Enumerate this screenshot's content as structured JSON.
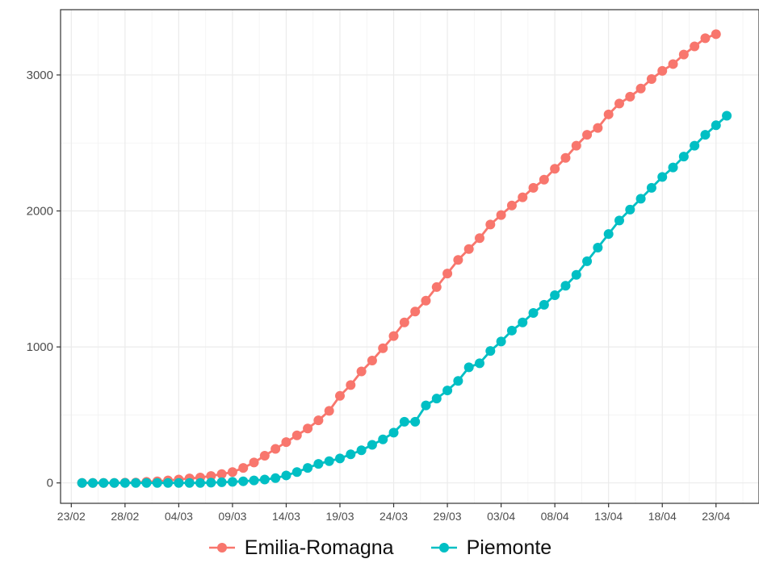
{
  "chart_data": {
    "type": "line",
    "title": "",
    "xlabel": "",
    "ylabel": "",
    "x_tick_labels": [
      "23/02",
      "28/02",
      "04/03",
      "09/03",
      "14/03",
      "19/03",
      "24/03",
      "29/03",
      "03/04",
      "08/04",
      "13/04",
      "18/04",
      "23/04"
    ],
    "y_tick_labels": [
      "0",
      "1000",
      "2000",
      "3000"
    ],
    "ylim": [
      -150,
      3480
    ],
    "xlim": [
      "2020-02-22",
      "2020-04-27"
    ],
    "x_start": "2020-02-24",
    "grid": true,
    "legend_position": "bottom",
    "series": [
      {
        "name": "Emilia-Romagna",
        "color": "#F8766D",
        "values": [
          0,
          0,
          0,
          0,
          2,
          3,
          8,
          12,
          18,
          25,
          33,
          40,
          51,
          65,
          80,
          110,
          150,
          200,
          250,
          300,
          350,
          400,
          460,
          530,
          640,
          720,
          820,
          900,
          990,
          1080,
          1180,
          1260,
          1340,
          1440,
          1540,
          1640,
          1720,
          1800,
          1900,
          1970,
          2040,
          2100,
          2170,
          2230,
          2310,
          2390,
          2480,
          2560,
          2610,
          2710,
          2790,
          2840,
          2900,
          2970,
          3030,
          3080,
          3150,
          3210,
          3270,
          3300
        ],
        "fmt": "Values are cumulative counts starting 2020-02-24, one per day."
      },
      {
        "name": "Piemonte",
        "color": "#00BFC4",
        "values": [
          0,
          0,
          0,
          0,
          0,
          0,
          0,
          0,
          0,
          0,
          0,
          0,
          2,
          5,
          8,
          12,
          18,
          25,
          35,
          55,
          80,
          110,
          140,
          160,
          180,
          210,
          240,
          280,
          320,
          370,
          450,
          450,
          570,
          620,
          680,
          750,
          850,
          880,
          970,
          1040,
          1120,
          1180,
          1250,
          1310,
          1380,
          1450,
          1530,
          1630,
          1730,
          1830,
          1930,
          2010,
          2090,
          2170,
          2250,
          2320,
          2400,
          2480,
          2560,
          2630,
          2700
        ]
      }
    ]
  }
}
